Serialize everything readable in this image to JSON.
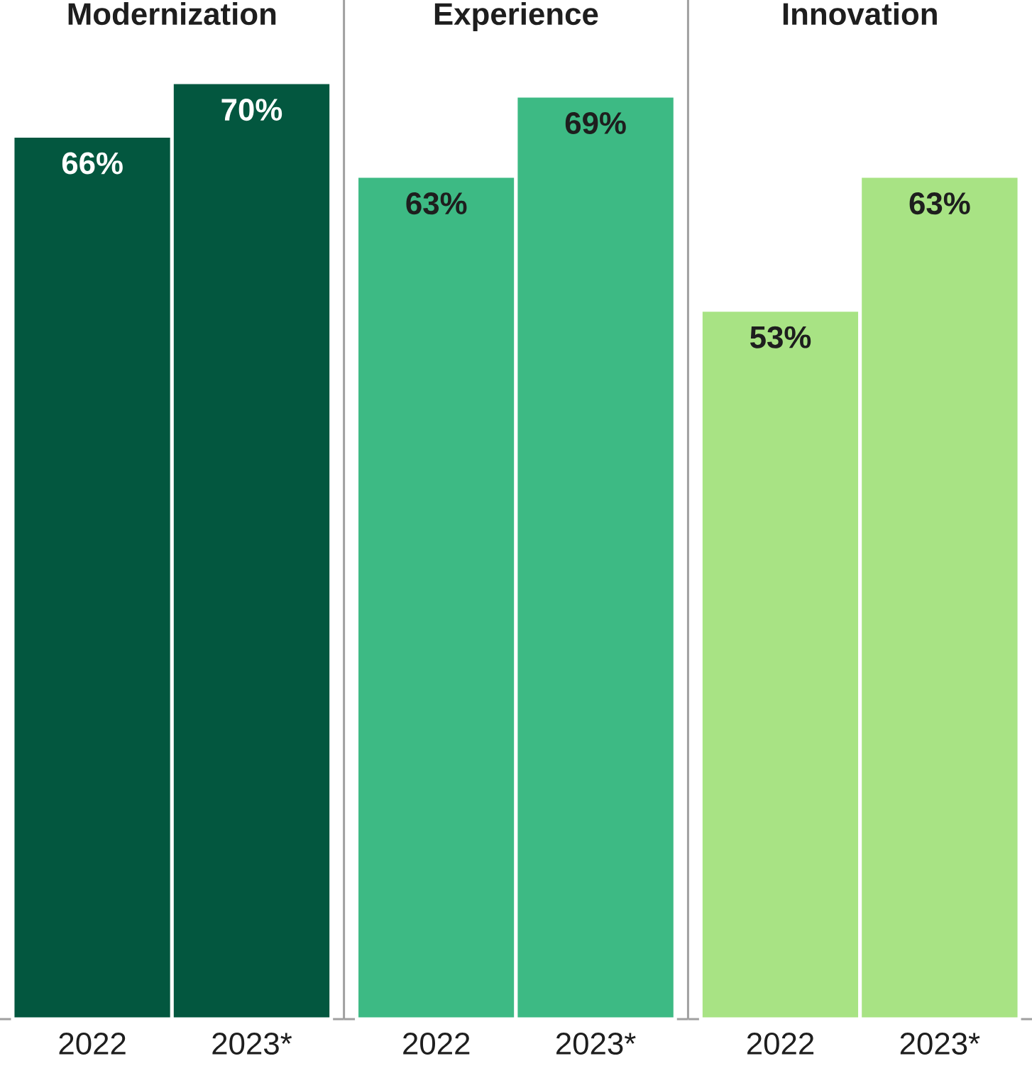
{
  "chart_data": [
    {
      "type": "bar",
      "title": "Modernization",
      "categories": [
        "2022",
        "2023*"
      ],
      "values": [
        66,
        70
      ],
      "color": "#03573f",
      "value_labels": [
        "66%",
        "70%"
      ]
    },
    {
      "type": "bar",
      "title": "Experience",
      "categories": [
        "2022",
        "2023*"
      ],
      "values": [
        63,
        69
      ],
      "color": "#3dba84",
      "value_labels": [
        "63%",
        "69%"
      ]
    },
    {
      "type": "bar",
      "title": "Innovation",
      "categories": [
        "2022",
        "2023*"
      ],
      "values": [
        53,
        63
      ],
      "color": "#a8e384",
      "value_labels": [
        "53%",
        "63%"
      ]
    }
  ]
}
